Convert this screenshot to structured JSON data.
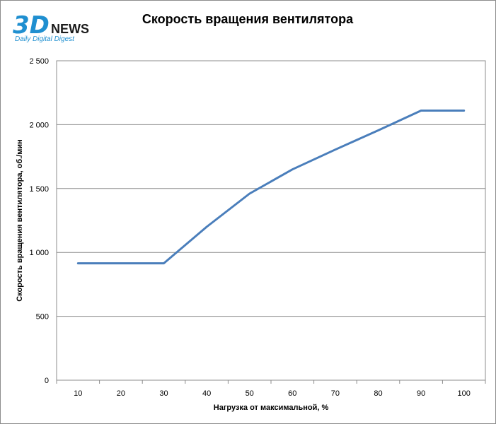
{
  "logo": {
    "main": "3D",
    "news": "NEWS",
    "tagline": "Daily Digital Digest",
    "colors": {
      "main": "#1f8fd0",
      "news": "#1a1a1a",
      "tagline": "#1f8fd0"
    }
  },
  "chart_data": {
    "type": "line",
    "title": "Скорость вращения вентилятора",
    "xlabel": "Нагрузка от максимальной, %",
    "ylabel": "Скорость вращения вентилятора, об./мин",
    "categories": [
      "10",
      "20",
      "30",
      "40",
      "50",
      "60",
      "70",
      "80",
      "90",
      "100"
    ],
    "series": [
      {
        "values": [
          915,
          915,
          915,
          1200,
          1460,
          1650,
          1805,
          1955,
          2110,
          2110
        ],
        "color": "#4a7ebb"
      }
    ],
    "ylim": [
      0,
      2500
    ],
    "yticks": [
      0,
      500,
      1000,
      1500,
      2000,
      2500
    ],
    "ytick_labels": [
      "0",
      "500",
      "1 000",
      "1 500",
      "2 000",
      "2 500"
    ],
    "grid": true
  }
}
